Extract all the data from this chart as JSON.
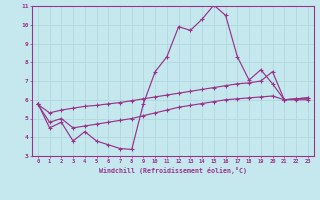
{
  "xlabel": "Windchill (Refroidissement éolien,°C)",
  "bg_color": "#c5e8ef",
  "line_color": "#993388",
  "grid_color": "#b0d8de",
  "xlim": [
    -0.5,
    23.5
  ],
  "ylim": [
    3,
    11
  ],
  "yticks": [
    3,
    4,
    5,
    6,
    7,
    8,
    9,
    10,
    11
  ],
  "xticks": [
    0,
    1,
    2,
    3,
    4,
    5,
    6,
    7,
    8,
    9,
    10,
    11,
    12,
    13,
    14,
    15,
    16,
    17,
    18,
    19,
    20,
    21,
    22,
    23
  ],
  "line1_x": [
    0,
    1,
    2,
    3,
    4,
    5,
    6,
    7,
    8,
    9,
    10,
    11,
    12,
    13,
    14,
    15,
    16,
    17,
    18,
    19,
    20,
    21,
    22,
    23
  ],
  "line1_y": [
    5.8,
    4.5,
    4.8,
    3.8,
    4.3,
    3.8,
    3.6,
    3.4,
    3.35,
    5.8,
    7.5,
    8.3,
    9.9,
    9.7,
    10.3,
    11.05,
    10.5,
    8.3,
    7.05,
    7.6,
    6.85,
    6.0,
    6.0,
    6.0
  ],
  "line2_x": [
    0,
    1,
    2,
    3,
    4,
    5,
    6,
    7,
    8,
    9,
    10,
    11,
    12,
    13,
    14,
    15,
    16,
    17,
    18,
    19,
    20,
    21,
    22,
    23
  ],
  "line2_y": [
    5.75,
    5.3,
    5.45,
    5.55,
    5.65,
    5.7,
    5.78,
    5.85,
    5.95,
    6.05,
    6.15,
    6.25,
    6.35,
    6.45,
    6.55,
    6.65,
    6.75,
    6.85,
    6.9,
    7.0,
    7.5,
    6.0,
    6.05,
    6.1
  ],
  "line3_x": [
    0,
    1,
    2,
    3,
    4,
    5,
    6,
    7,
    8,
    9,
    10,
    11,
    12,
    13,
    14,
    15,
    16,
    17,
    18,
    19,
    20,
    21,
    22,
    23
  ],
  "line3_y": [
    5.75,
    4.8,
    5.0,
    4.5,
    4.6,
    4.7,
    4.8,
    4.9,
    5.0,
    5.15,
    5.3,
    5.45,
    5.6,
    5.7,
    5.8,
    5.9,
    6.0,
    6.05,
    6.1,
    6.15,
    6.2,
    6.0,
    6.05,
    6.1
  ]
}
